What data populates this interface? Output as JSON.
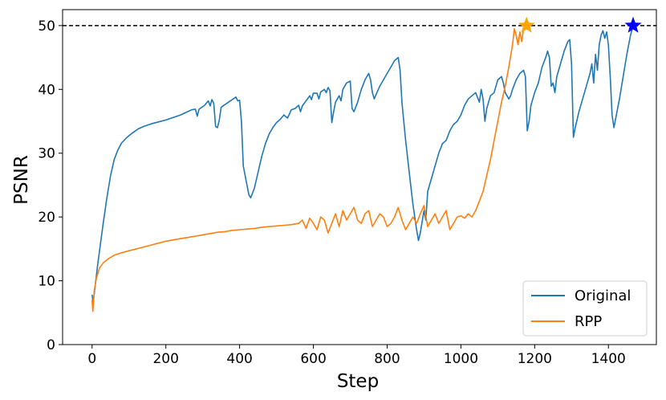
{
  "chart_data": {
    "type": "line",
    "title": "",
    "xlabel": "Step",
    "ylabel": "PSNR",
    "xlim": [
      -80,
      1530
    ],
    "ylim": [
      0,
      52.5
    ],
    "xticks": [
      0,
      200,
      400,
      600,
      800,
      1000,
      1200,
      1400
    ],
    "yticks": [
      0,
      10,
      20,
      30,
      40,
      50
    ],
    "grid": false,
    "legend": {
      "placement": "lower-right"
    },
    "reference_line": {
      "y": 50,
      "color": "#000000",
      "style": "dashed"
    },
    "colors": {
      "Original": "#1f77b4",
      "RPP": "#ff7f0e"
    },
    "series": [
      {
        "name": "Original",
        "color": "#1f77b4",
        "points": [
          [
            0,
            7.8
          ],
          [
            3,
            6.5
          ],
          [
            8,
            9.0
          ],
          [
            15,
            12.5
          ],
          [
            22,
            15.5
          ],
          [
            30,
            19.0
          ],
          [
            40,
            23.0
          ],
          [
            50,
            26.5
          ],
          [
            60,
            29.0
          ],
          [
            70,
            30.5
          ],
          [
            80,
            31.6
          ],
          [
            95,
            32.5
          ],
          [
            110,
            33.2
          ],
          [
            125,
            33.8
          ],
          [
            140,
            34.2
          ],
          [
            160,
            34.6
          ],
          [
            180,
            34.9
          ],
          [
            200,
            35.2
          ],
          [
            220,
            35.6
          ],
          [
            240,
            36.0
          ],
          [
            255,
            36.4
          ],
          [
            270,
            36.8
          ],
          [
            280,
            36.9
          ],
          [
            285,
            35.8
          ],
          [
            290,
            36.9
          ],
          [
            305,
            37.5
          ],
          [
            315,
            38.2
          ],
          [
            320,
            37.4
          ],
          [
            325,
            38.4
          ],
          [
            330,
            37.8
          ],
          [
            335,
            34.2
          ],
          [
            340,
            34.0
          ],
          [
            345,
            35.2
          ],
          [
            350,
            37.2
          ],
          [
            360,
            37.6
          ],
          [
            370,
            38.0
          ],
          [
            380,
            38.4
          ],
          [
            390,
            38.8
          ],
          [
            395,
            38.2
          ],
          [
            400,
            38.3
          ],
          [
            405,
            35.0
          ],
          [
            410,
            28.0
          ],
          [
            415,
            26.5
          ],
          [
            420,
            25.0
          ],
          [
            425,
            23.5
          ],
          [
            430,
            23.0
          ],
          [
            440,
            24.5
          ],
          [
            450,
            27.0
          ],
          [
            460,
            29.5
          ],
          [
            470,
            31.5
          ],
          [
            480,
            33.0
          ],
          [
            490,
            34.0
          ],
          [
            500,
            34.8
          ],
          [
            510,
            35.3
          ],
          [
            520,
            36.0
          ],
          [
            530,
            35.5
          ],
          [
            540,
            36.8
          ],
          [
            550,
            37.0
          ],
          [
            560,
            37.5
          ],
          [
            565,
            36.5
          ],
          [
            570,
            37.4
          ],
          [
            580,
            38.2
          ],
          [
            590,
            39.0
          ],
          [
            595,
            38.4
          ],
          [
            600,
            39.4
          ],
          [
            610,
            39.4
          ],
          [
            615,
            38.5
          ],
          [
            620,
            39.6
          ],
          [
            630,
            40.0
          ],
          [
            635,
            39.5
          ],
          [
            640,
            40.3
          ],
          [
            645,
            39.8
          ],
          [
            650,
            34.8
          ],
          [
            655,
            36.5
          ],
          [
            660,
            38.0
          ],
          [
            670,
            39.0
          ],
          [
            675,
            38.2
          ],
          [
            680,
            40.0
          ],
          [
            690,
            41.0
          ],
          [
            700,
            41.3
          ],
          [
            705,
            37.0
          ],
          [
            710,
            36.5
          ],
          [
            720,
            38.0
          ],
          [
            730,
            40.0
          ],
          [
            740,
            41.5
          ],
          [
            750,
            42.5
          ],
          [
            755,
            41.5
          ],
          [
            760,
            39.5
          ],
          [
            765,
            38.5
          ],
          [
            770,
            39.2
          ],
          [
            780,
            40.5
          ],
          [
            790,
            41.5
          ],
          [
            800,
            42.5
          ],
          [
            810,
            43.5
          ],
          [
            820,
            44.5
          ],
          [
            830,
            45.0
          ],
          [
            835,
            43.0
          ],
          [
            840,
            38.0
          ],
          [
            850,
            32.0
          ],
          [
            860,
            27.0
          ],
          [
            870,
            22.0
          ],
          [
            880,
            18.0
          ],
          [
            885,
            16.3
          ],
          [
            890,
            17.5
          ],
          [
            900,
            21.0
          ],
          [
            905,
            19.5
          ],
          [
            910,
            24.0
          ],
          [
            920,
            26.0
          ],
          [
            930,
            28.0
          ],
          [
            940,
            30.0
          ],
          [
            950,
            31.5
          ],
          [
            960,
            32.0
          ],
          [
            970,
            33.5
          ],
          [
            980,
            34.5
          ],
          [
            990,
            35.0
          ],
          [
            1000,
            36.0
          ],
          [
            1010,
            37.5
          ],
          [
            1020,
            38.5
          ],
          [
            1030,
            39.0
          ],
          [
            1040,
            39.5
          ],
          [
            1050,
            38.0
          ],
          [
            1055,
            40.0
          ],
          [
            1060,
            38.5
          ],
          [
            1065,
            35.0
          ],
          [
            1070,
            37.0
          ],
          [
            1080,
            39.0
          ],
          [
            1090,
            39.5
          ],
          [
            1095,
            40.5
          ],
          [
            1100,
            41.5
          ],
          [
            1110,
            42.0
          ],
          [
            1115,
            41.0
          ],
          [
            1120,
            39.5
          ],
          [
            1130,
            38.5
          ],
          [
            1135,
            39.0
          ],
          [
            1140,
            40.0
          ],
          [
            1150,
            41.5
          ],
          [
            1160,
            42.5
          ],
          [
            1170,
            43.0
          ],
          [
            1175,
            42.0
          ],
          [
            1180,
            33.5
          ],
          [
            1185,
            35.0
          ],
          [
            1190,
            37.5
          ],
          [
            1200,
            39.5
          ],
          [
            1210,
            41.0
          ],
          [
            1220,
            43.5
          ],
          [
            1230,
            45.0
          ],
          [
            1235,
            46.0
          ],
          [
            1240,
            45.0
          ],
          [
            1245,
            40.5
          ],
          [
            1250,
            41.0
          ],
          [
            1255,
            39.5
          ],
          [
            1260,
            42.0
          ],
          [
            1270,
            44.0
          ],
          [
            1280,
            46.0
          ],
          [
            1290,
            47.5
          ],
          [
            1295,
            47.8
          ],
          [
            1300,
            44.0
          ],
          [
            1305,
            32.5
          ],
          [
            1310,
            34.0
          ],
          [
            1320,
            36.5
          ],
          [
            1330,
            38.5
          ],
          [
            1340,
            40.5
          ],
          [
            1350,
            42.5
          ],
          [
            1355,
            44.0
          ],
          [
            1360,
            41.0
          ],
          [
            1365,
            45.5
          ],
          [
            1370,
            43.0
          ],
          [
            1375,
            47.0
          ],
          [
            1380,
            48.5
          ],
          [
            1385,
            49.2
          ],
          [
            1390,
            48.0
          ],
          [
            1395,
            49.0
          ],
          [
            1400,
            47.0
          ],
          [
            1405,
            42.0
          ],
          [
            1410,
            36.0
          ],
          [
            1415,
            34.0
          ],
          [
            1420,
            35.5
          ],
          [
            1430,
            38.5
          ],
          [
            1440,
            42.0
          ],
          [
            1450,
            45.5
          ],
          [
            1460,
            48.5
          ],
          [
            1467,
            50.0
          ]
        ],
        "marker": {
          "shape": "star",
          "x": 1467,
          "y": 50,
          "color": "#0000ff"
        }
      },
      {
        "name": "RPP",
        "color": "#ff7f0e",
        "points": [
          [
            0,
            7.0
          ],
          [
            2,
            5.2
          ],
          [
            6,
            8.5
          ],
          [
            12,
            10.5
          ],
          [
            20,
            12.0
          ],
          [
            30,
            12.8
          ],
          [
            45,
            13.5
          ],
          [
            60,
            14.0
          ],
          [
            80,
            14.4
          ],
          [
            100,
            14.7
          ],
          [
            120,
            15.0
          ],
          [
            140,
            15.3
          ],
          [
            160,
            15.6
          ],
          [
            180,
            15.9
          ],
          [
            200,
            16.2
          ],
          [
            220,
            16.4
          ],
          [
            240,
            16.6
          ],
          [
            260,
            16.8
          ],
          [
            280,
            17.0
          ],
          [
            300,
            17.2
          ],
          [
            320,
            17.4
          ],
          [
            340,
            17.6
          ],
          [
            360,
            17.7
          ],
          [
            380,
            17.9
          ],
          [
            400,
            18.0
          ],
          [
            420,
            18.1
          ],
          [
            440,
            18.2
          ],
          [
            460,
            18.4
          ],
          [
            480,
            18.5
          ],
          [
            500,
            18.6
          ],
          [
            520,
            18.7
          ],
          [
            540,
            18.8
          ],
          [
            560,
            19.0
          ],
          [
            570,
            19.5
          ],
          [
            580,
            18.2
          ],
          [
            590,
            19.8
          ],
          [
            600,
            19.0
          ],
          [
            610,
            18.0
          ],
          [
            620,
            20.0
          ],
          [
            630,
            19.5
          ],
          [
            640,
            17.5
          ],
          [
            650,
            19.0
          ],
          [
            660,
            20.5
          ],
          [
            670,
            18.5
          ],
          [
            680,
            21.0
          ],
          [
            690,
            19.5
          ],
          [
            700,
            20.5
          ],
          [
            710,
            21.5
          ],
          [
            720,
            19.5
          ],
          [
            730,
            19.0
          ],
          [
            740,
            20.5
          ],
          [
            750,
            21.0
          ],
          [
            760,
            18.5
          ],
          [
            770,
            19.5
          ],
          [
            780,
            20.5
          ],
          [
            790,
            20.0
          ],
          [
            800,
            18.5
          ],
          [
            810,
            19.0
          ],
          [
            820,
            20.0
          ],
          [
            830,
            21.5
          ],
          [
            840,
            19.5
          ],
          [
            850,
            18.0
          ],
          [
            860,
            19.0
          ],
          [
            870,
            20.0
          ],
          [
            880,
            19.0
          ],
          [
            890,
            20.5
          ],
          [
            900,
            21.8
          ],
          [
            910,
            18.5
          ],
          [
            920,
            19.5
          ],
          [
            930,
            20.5
          ],
          [
            940,
            19.0
          ],
          [
            950,
            20.0
          ],
          [
            960,
            21.0
          ],
          [
            970,
            18.0
          ],
          [
            980,
            19.0
          ],
          [
            990,
            20.0
          ],
          [
            1000,
            20.2
          ],
          [
            1010,
            19.8
          ],
          [
            1020,
            20.5
          ],
          [
            1030,
            20.0
          ],
          [
            1040,
            21.0
          ],
          [
            1050,
            22.5
          ],
          [
            1060,
            24.0
          ],
          [
            1070,
            26.5
          ],
          [
            1080,
            29.0
          ],
          [
            1090,
            32.0
          ],
          [
            1100,
            35.0
          ],
          [
            1110,
            38.0
          ],
          [
            1120,
            40.5
          ],
          [
            1130,
            43.5
          ],
          [
            1140,
            47.0
          ],
          [
            1145,
            49.5
          ],
          [
            1150,
            48.5
          ],
          [
            1155,
            47.0
          ],
          [
            1160,
            49.0
          ],
          [
            1165,
            47.5
          ],
          [
            1170,
            49.5
          ],
          [
            1178,
            50.0
          ]
        ],
        "marker": {
          "shape": "star",
          "x": 1178,
          "y": 50,
          "color": "#ffa500"
        }
      }
    ]
  }
}
